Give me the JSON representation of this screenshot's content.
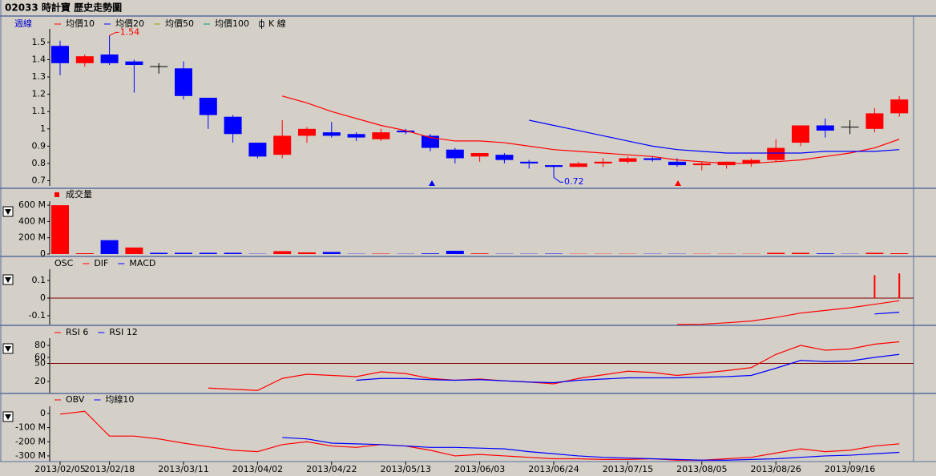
{
  "title": "02033 時計寶  歷史走勢圖",
  "period": "週線",
  "chart_data": [
    {
      "type": "candlestick",
      "ylim": [
        0.67,
        1.56
      ],
      "yticks": [
        0.7,
        0.8,
        0.9,
        1,
        1.1,
        1.2,
        1.3,
        1.4,
        1.5
      ],
      "up_color": "#ff0000",
      "down_color": "#0000ff",
      "flat_color": "#000000",
      "series": [
        {
          "name": "均價10",
          "type": "line",
          "color": "#ff0000",
          "values": [
            null,
            null,
            null,
            null,
            null,
            null,
            null,
            null,
            null,
            1.19,
            1.15,
            1.1,
            1.06,
            1.02,
            0.99,
            0.95,
            0.93,
            0.93,
            0.92,
            0.9,
            0.88,
            0.87,
            0.86,
            0.85,
            0.84,
            0.82,
            0.81,
            0.8,
            0.8,
            0.81,
            0.82,
            0.84,
            0.86,
            0.89,
            0.94
          ]
        },
        {
          "name": "均價20",
          "type": "line",
          "color": "#0000ff",
          "values": [
            null,
            null,
            null,
            null,
            null,
            null,
            null,
            null,
            null,
            null,
            null,
            null,
            null,
            null,
            null,
            null,
            null,
            null,
            null,
            1.05,
            1.02,
            0.99,
            0.96,
            0.93,
            0.9,
            0.88,
            0.87,
            0.86,
            0.86,
            0.86,
            0.86,
            0.87,
            0.87,
            0.87,
            0.88
          ]
        },
        {
          "name": "均價50",
          "type": "line",
          "color": "#a0a000"
        },
        {
          "name": "均價100",
          "type": "line",
          "color": "#00a080"
        },
        {
          "name": "K 線",
          "type": "candlestick",
          "open": [
            1.48,
            1.38,
            1.43,
            1.39,
            1.36,
            1.35,
            1.18,
            1.07,
            0.92,
            0.85,
            0.96,
            0.98,
            0.97,
            0.94,
            0.99,
            0.96,
            0.88,
            0.84,
            0.85,
            0.81,
            0.79,
            0.78,
            0.8,
            0.81,
            0.83,
            0.81,
            0.79,
            0.79,
            0.8,
            0.82,
            0.92,
            1.02,
            1.01,
            1.0,
            1.09
          ],
          "high": [
            1.51,
            1.43,
            1.54,
            1.4,
            1.38,
            1.39,
            1.18,
            1.08,
            0.92,
            1.05,
            1.01,
            1.04,
            0.98,
            1.0,
            1.0,
            0.97,
            0.89,
            0.86,
            0.86,
            0.82,
            0.79,
            0.81,
            0.83,
            0.84,
            0.84,
            0.83,
            0.81,
            0.81,
            0.83,
            0.94,
            1.02,
            1.06,
            1.05,
            1.12,
            1.19
          ],
          "low": [
            1.31,
            1.36,
            1.37,
            1.21,
            1.32,
            1.17,
            1.0,
            0.92,
            0.83,
            0.83,
            0.92,
            0.95,
            0.93,
            0.93,
            0.97,
            0.87,
            0.8,
            0.81,
            0.8,
            0.77,
            0.72,
            0.78,
            0.78,
            0.8,
            0.81,
            0.78,
            0.76,
            0.77,
            0.78,
            0.81,
            0.9,
            0.95,
            0.97,
            0.98,
            1.07
          ],
          "close": [
            1.38,
            1.42,
            1.38,
            1.37,
            1.36,
            1.19,
            1.08,
            0.97,
            0.84,
            0.96,
            1.0,
            0.96,
            0.95,
            0.98,
            0.98,
            0.89,
            0.83,
            0.86,
            0.82,
            0.8,
            0.78,
            0.8,
            0.81,
            0.83,
            0.82,
            0.79,
            0.8,
            0.81,
            0.82,
            0.89,
            1.02,
            0.99,
            1.01,
            1.09,
            1.17
          ],
          "high_labels": [
            null,
            null,
            "1.54",
            null,
            null,
            null,
            null,
            null,
            null,
            null,
            null,
            null,
            null,
            null,
            null,
            null,
            null,
            null,
            null,
            null,
            null,
            null,
            null,
            null,
            null,
            null,
            null,
            null,
            null,
            null,
            null,
            null,
            null,
            null,
            null
          ],
          "low_labels": [
            null,
            null,
            null,
            null,
            null,
            null,
            null,
            null,
            null,
            null,
            null,
            null,
            null,
            null,
            null,
            null,
            null,
            null,
            null,
            null,
            "0.72",
            null,
            null,
            null,
            null,
            null,
            null,
            null,
            null,
            null,
            null,
            null,
            null,
            null,
            null
          ],
          "high_label_color": "#ff0000",
          "low_label_color": "#0000ff"
        }
      ]
    },
    {
      "type": "bar",
      "ylim": [
        0,
        660000000
      ],
      "yticks": [
        0,
        {
          "value": 200000000,
          "label": "200 M"
        },
        {
          "value": 400000000,
          "label": "400 M"
        },
        {
          "value": 600000000,
          "label": "600 M"
        }
      ],
      "series": [
        {
          "name": "成交量",
          "type": "bar",
          "color": "#ff0000",
          "values": [
            600000000,
            10000000,
            170000000,
            80000000,
            15000000,
            15000000,
            15000000,
            15000000,
            3000000,
            35000000,
            20000000,
            25000000,
            3000000,
            5000000,
            3000000,
            8000000,
            40000000,
            8000000,
            3000000,
            3000000,
            5000000,
            3000000,
            3000000,
            3000000,
            3000000,
            3000000,
            3000000,
            3000000,
            3000000,
            15000000,
            15000000,
            8000000,
            3000000,
            15000000,
            10000000
          ],
          "colors": [
            "#ff0000",
            "#ff0000",
            "#0000ff",
            "#ff0000",
            "#0000ff",
            "#0000ff",
            "#0000ff",
            "#0000ff",
            "#0000ff",
            "#ff0000",
            "#ff0000",
            "#0000ff",
            "#0000ff",
            "#ff0000",
            "#0000ff",
            "#0000ff",
            "#0000ff",
            "#ff0000",
            "#0000ff",
            "#0000ff",
            "#0000ff",
            "#ff0000",
            "#ff0000",
            "#ff0000",
            "#0000ff",
            "#0000ff",
            "#ff0000",
            "#ff0000",
            "#ff0000",
            "#ff0000",
            "#ff0000",
            "#0000ff",
            "#0000ff",
            "#ff0000",
            "#ff0000"
          ]
        }
      ]
    },
    {
      "type": "combo",
      "ylim": [
        -0.15,
        0.15
      ],
      "yticks": [
        -0.1,
        0,
        0.1
      ],
      "ref_line": 0,
      "ref_color": "#800000",
      "series": [
        {
          "name": "OSC",
          "type": "bar",
          "color": "#ff0000",
          "values": [
            null,
            null,
            null,
            null,
            null,
            null,
            null,
            null,
            null,
            null,
            null,
            null,
            null,
            null,
            null,
            null,
            null,
            null,
            null,
            null,
            null,
            null,
            null,
            null,
            null,
            null,
            null,
            null,
            null,
            null,
            null,
            null,
            null,
            0.13,
            0.14
          ]
        },
        {
          "name": "DIF",
          "type": "line",
          "color": "#ff0000",
          "values": [
            null,
            null,
            null,
            null,
            null,
            null,
            null,
            null,
            null,
            null,
            null,
            null,
            null,
            null,
            null,
            null,
            null,
            null,
            null,
            null,
            null,
            null,
            null,
            null,
            null,
            -0.15,
            -0.148,
            -0.14,
            -0.13,
            -0.11,
            -0.085,
            -0.07,
            -0.055,
            -0.035,
            -0.015
          ]
        },
        {
          "name": "MACD",
          "type": "line",
          "color": "#0000ff",
          "values": [
            null,
            null,
            null,
            null,
            null,
            null,
            null,
            null,
            null,
            null,
            null,
            null,
            null,
            null,
            null,
            null,
            null,
            null,
            null,
            null,
            null,
            null,
            null,
            null,
            null,
            null,
            null,
            null,
            null,
            null,
            null,
            null,
            null,
            -0.09,
            -0.08
          ]
        }
      ]
    },
    {
      "type": "line",
      "ylim": [
        0,
        100
      ],
      "yticks": [
        20,
        50,
        60,
        80
      ],
      "ref_line": 50,
      "ref_color": "#800000",
      "series": [
        {
          "name": "RSI 6",
          "type": "line",
          "color": "#ff0000",
          "values": [
            null,
            null,
            null,
            null,
            null,
            null,
            9,
            7,
            5,
            25,
            32,
            30,
            28,
            36,
            33,
            25,
            22,
            24,
            21,
            19,
            16,
            25,
            31,
            37,
            35,
            30,
            34,
            38,
            43,
            65,
            80,
            72,
            74,
            82,
            86
          ]
        },
        {
          "name": "RSI 12",
          "type": "line",
          "color": "#0000ff",
          "values": [
            null,
            null,
            null,
            null,
            null,
            null,
            null,
            null,
            null,
            null,
            null,
            null,
            22,
            25,
            25,
            23,
            22,
            23,
            21,
            19,
            18,
            22,
            24,
            26,
            26,
            26,
            27,
            28,
            30,
            42,
            55,
            53,
            54,
            60,
            65
          ]
        }
      ]
    },
    {
      "type": "line",
      "ylim": [
        -340000000,
        90000000
      ],
      "yticks": [
        {
          "value": -300000000,
          "label": "-300 M"
        },
        {
          "value": -200000000,
          "label": "-200 M"
        },
        {
          "value": -100000000,
          "label": "-100 M"
        },
        0
      ],
      "categories": [
        "2013/02/05",
        null,
        "2013/02/18",
        null,
        null,
        "2013/03/11",
        null,
        null,
        "2013/04/02",
        null,
        null,
        "2013/04/22",
        null,
        null,
        "2013/05/13",
        null,
        null,
        "2013/06/03",
        null,
        null,
        "2013/06/24",
        null,
        null,
        "2013/07/15",
        null,
        null,
        "2013/08/05",
        null,
        null,
        "2013/08/26",
        null,
        null,
        "2013/09/16",
        null,
        null
      ],
      "series": [
        {
          "name": "OBV",
          "type": "line",
          "color": "#ff0000",
          "values": [
            -5000000,
            15000000,
            -160000000,
            -160000000,
            -180000000,
            -210000000,
            -235000000,
            -260000000,
            -270000000,
            -220000000,
            -200000000,
            -230000000,
            -240000000,
            -220000000,
            -230000000,
            -260000000,
            -300000000,
            -290000000,
            -300000000,
            -310000000,
            -320000000,
            -320000000,
            -325000000,
            -325000000,
            -320000000,
            -330000000,
            -330000000,
            -320000000,
            -310000000,
            -280000000,
            -250000000,
            -270000000,
            -260000000,
            -230000000,
            -215000000
          ]
        },
        {
          "name": "均線10",
          "type": "line",
          "color": "#0000ff",
          "values": [
            null,
            null,
            null,
            null,
            null,
            null,
            null,
            null,
            null,
            -170000000,
            -180000000,
            -210000000,
            -215000000,
            -220000000,
            -230000000,
            -240000000,
            -240000000,
            -245000000,
            -250000000,
            -270000000,
            -285000000,
            -300000000,
            -310000000,
            -315000000,
            -320000000,
            -325000000,
            -330000000,
            -330000000,
            -325000000,
            -320000000,
            -310000000,
            -300000000,
            -295000000,
            -285000000,
            -275000000
          ]
        }
      ]
    }
  ]
}
